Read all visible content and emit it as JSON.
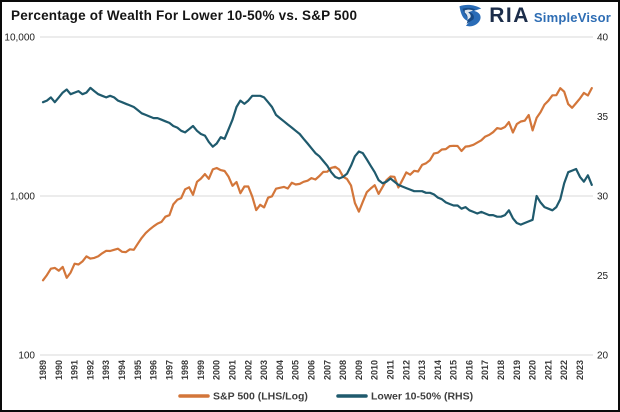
{
  "header": {
    "title": "Percentage of Wealth For Lower 10-50% vs. S&P 500",
    "brand": {
      "name": "RIA",
      "product": "SimpleVisor",
      "icon": "ria-eagle-icon",
      "name_color": "#1c2d4a",
      "product_color": "#2e6db4",
      "icon_color": "#2a6cb7"
    }
  },
  "chart_data": {
    "type": "line",
    "title": "Percentage of Wealth For Lower 10-50% vs. S&P 500",
    "x_start": 1989.0,
    "x_step": 0.25,
    "series": [
      {
        "name": "S&P 500 (LHS/Log)",
        "axis": "left",
        "color": "#d3763a",
        "values": [
          295,
          318,
          349,
          353,
          339,
          358,
          306,
          330,
          375,
          371,
          388,
          417,
          404,
          408,
          418,
          436,
          452,
          451,
          459,
          466,
          446,
          444,
          462,
          459,
          501,
          545,
          584,
          616,
          645,
          671,
          687,
          741,
          757,
          885,
          947,
          970,
          1102,
          1134,
          1017,
          1229,
          1286,
          1373,
          1283,
          1469,
          1499,
          1455,
          1436,
          1320,
          1160,
          1224,
          1041,
          1148,
          1147,
          990,
          815,
          880,
          848,
          975,
          996,
          1112,
          1126,
          1141,
          1115,
          1212,
          1181,
          1191,
          1229,
          1248,
          1295,
          1270,
          1336,
          1418,
          1421,
          1503,
          1527,
          1468,
          1323,
          1280,
          1166,
          903,
          798,
          919,
          1057,
          1115,
          1169,
          1031,
          1141,
          1258,
          1326,
          1321,
          1131,
          1258,
          1408,
          1362,
          1441,
          1426,
          1569,
          1606,
          1682,
          1848,
          1872,
          1960,
          1972,
          2059,
          2068,
          2063,
          1920,
          2044,
          2060,
          2099,
          2168,
          2239,
          2363,
          2423,
          2519,
          2674,
          2641,
          2718,
          2914,
          2507,
          2834,
          2942,
          2977,
          3231,
          2585,
          3100,
          3363,
          3756,
          3973,
          4298,
          4308,
          4766,
          4530,
          3785,
          3586,
          3840,
          4109,
          4450,
          4288,
          4770
        ]
      },
      {
        "name": "Lower 10-50% (RHS)",
        "axis": "right",
        "color": "#1f5a6d",
        "values": [
          35.9,
          36.0,
          36.2,
          35.9,
          36.2,
          36.5,
          36.7,
          36.4,
          36.5,
          36.6,
          36.4,
          36.5,
          36.8,
          36.6,
          36.4,
          36.3,
          36.2,
          36.3,
          36.2,
          36.0,
          35.9,
          35.8,
          35.7,
          35.6,
          35.4,
          35.2,
          35.1,
          35.0,
          34.9,
          34.9,
          34.8,
          34.7,
          34.6,
          34.4,
          34.3,
          34.1,
          34.0,
          34.2,
          34.4,
          34.1,
          33.9,
          33.8,
          33.4,
          33.1,
          33.3,
          33.7,
          33.6,
          34.2,
          34.8,
          35.6,
          36.0,
          35.8,
          36.0,
          36.3,
          36.3,
          36.3,
          36.2,
          35.9,
          35.6,
          35.1,
          34.9,
          34.7,
          34.5,
          34.3,
          34.1,
          33.9,
          33.6,
          33.3,
          33.0,
          32.7,
          32.5,
          32.2,
          31.9,
          31.5,
          31.2,
          31.1,
          31.2,
          31.4,
          31.9,
          32.5,
          32.8,
          32.7,
          32.3,
          31.9,
          31.5,
          31.0,
          30.8,
          30.9,
          31.1,
          30.9,
          30.7,
          30.6,
          30.5,
          30.4,
          30.3,
          30.3,
          30.3,
          30.2,
          30.2,
          30.1,
          29.9,
          29.8,
          29.6,
          29.5,
          29.4,
          29.4,
          29.2,
          29.3,
          29.1,
          29.0,
          28.9,
          29.0,
          28.9,
          28.8,
          28.8,
          28.7,
          28.7,
          28.8,
          29.1,
          28.6,
          28.3,
          28.2,
          28.3,
          28.4,
          28.5,
          30.0,
          29.6,
          29.3,
          29.2,
          29.1,
          29.3,
          29.8,
          30.8,
          31.5,
          31.6,
          31.7,
          31.2,
          30.9,
          31.3,
          30.7
        ]
      }
    ],
    "left_axis": {
      "scale": "log",
      "range": [
        100,
        10000
      ],
      "ticks": [
        10000,
        1000,
        100
      ],
      "tick_labels": [
        "10,000",
        "1,000",
        "100"
      ]
    },
    "right_axis": {
      "scale": "linear",
      "range": [
        20,
        40
      ],
      "ticks": [
        40,
        35,
        30,
        25,
        20
      ],
      "tick_labels": [
        "40",
        "35",
        "30",
        "25",
        "20"
      ]
    },
    "x_axis": {
      "tick_labels": [
        "1989",
        "1990",
        "1991",
        "1992",
        "1993",
        "1994",
        "1995",
        "1996",
        "1997",
        "1998",
        "1999",
        "2000",
        "2001",
        "2002",
        "2003",
        "2004",
        "2005",
        "2006",
        "2007",
        "2008",
        "2009",
        "2010",
        "2011",
        "2012",
        "2013",
        "2014",
        "2015",
        "2016",
        "2017",
        "2018",
        "2019",
        "2020",
        "2021",
        "2022",
        "2023"
      ]
    },
    "grid": "horizontal-at-left-ticks",
    "grid_color": "#d9d9d9",
    "label_color": "#3a3a3a",
    "legend_position": "bottom-center"
  }
}
